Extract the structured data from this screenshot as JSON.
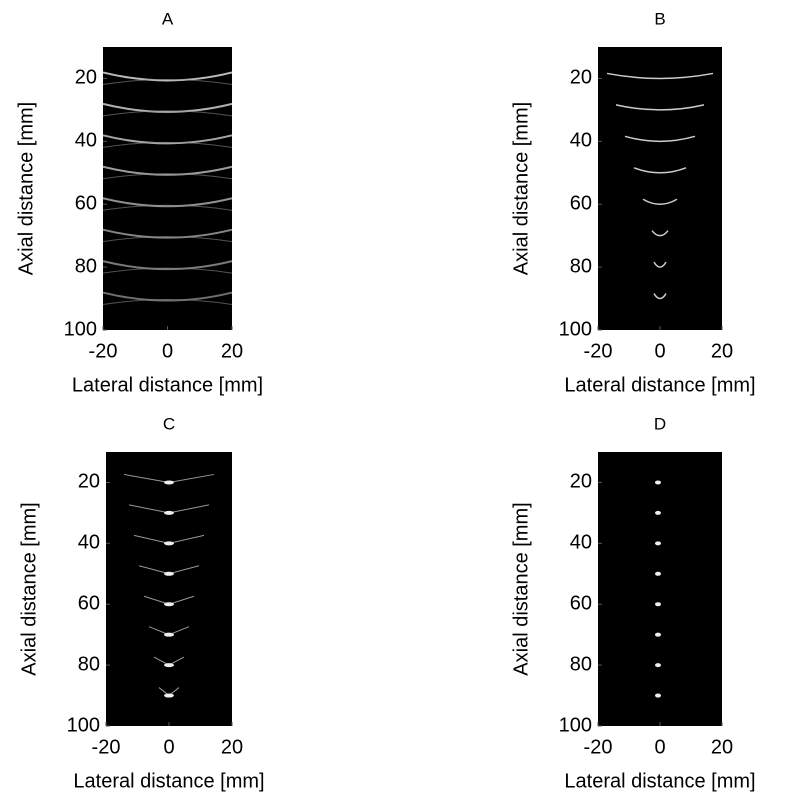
{
  "chart_data": [
    {
      "type": "image",
      "title": "A",
      "xlabel": "Lateral distance [mm]",
      "ylabel": "Axial distance [mm]",
      "xlim": [
        -20,
        20
      ],
      "ylim": [
        100,
        10
      ],
      "xticks": [
        -20,
        0,
        20
      ],
      "yticks": [
        20,
        40,
        60,
        80,
        100
      ]
    },
    {
      "type": "image",
      "title": "B",
      "xlabel": "Lateral distance [mm]",
      "ylabel": "Axial distance [mm]",
      "xlim": [
        -20,
        20
      ],
      "ylim": [
        100,
        10
      ],
      "xticks": [
        -20,
        0,
        20
      ],
      "yticks": [
        20,
        40,
        60,
        80,
        100
      ]
    },
    {
      "type": "image",
      "title": "C",
      "xlabel": "Lateral distance [mm]",
      "ylabel": "Axial distance [mm]",
      "xlim": [
        -20,
        20
      ],
      "ylim": [
        100,
        10
      ],
      "xticks": [
        -20,
        0,
        20
      ],
      "yticks": [
        20,
        40,
        60,
        80,
        100
      ]
    },
    {
      "type": "image",
      "title": "D",
      "xlabel": "Lateral distance [mm]",
      "ylabel": "Axial distance [mm]",
      "xlim": [
        -20,
        20
      ],
      "ylim": [
        100,
        10
      ],
      "xticks": [
        -20,
        0,
        20
      ],
      "yticks": [
        20,
        40,
        60,
        80,
        100
      ]
    }
  ]
}
